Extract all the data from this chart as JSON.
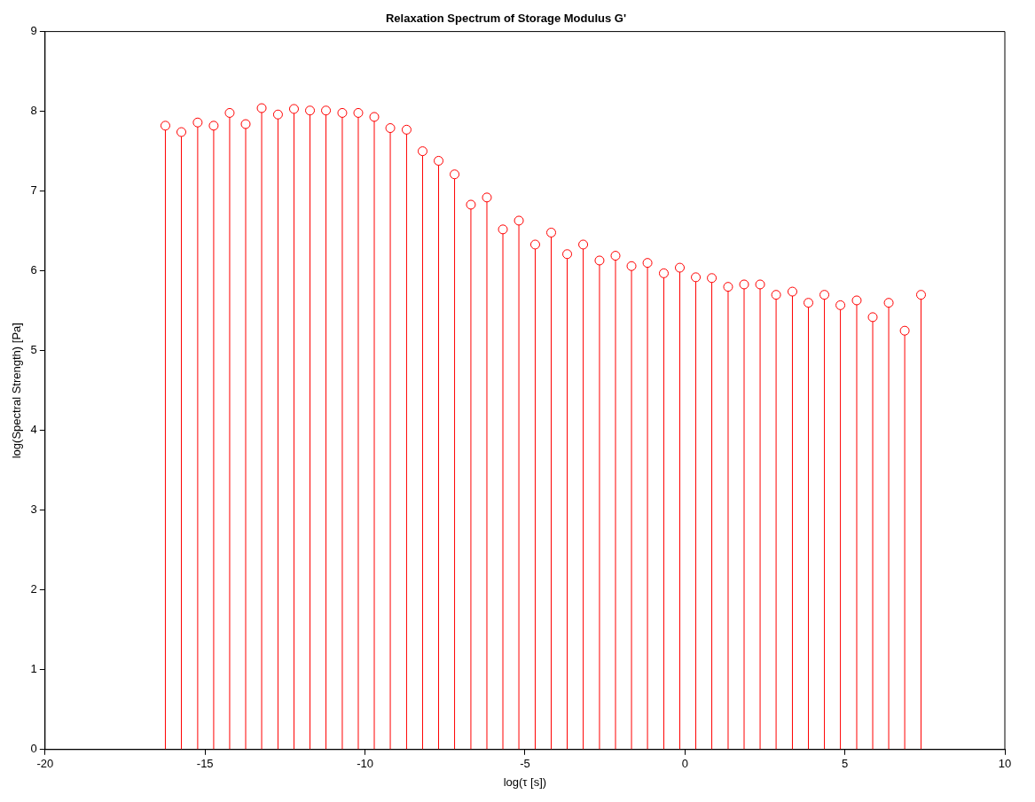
{
  "chart_data": {
    "type": "lollipop",
    "title": "Relaxation Spectrum of Storage Modulus G'",
    "xlabel": "log(τ [s])",
    "ylabel": "log(Spectral Strength) [Pa]",
    "x": [
      -16.24,
      -15.74,
      -15.23,
      -14.73,
      -14.23,
      -13.73,
      -13.23,
      -12.72,
      -12.22,
      -11.72,
      -11.22,
      -10.71,
      -10.21,
      -9.71,
      -9.21,
      -8.7,
      -8.2,
      -7.7,
      -7.2,
      -6.69,
      -6.19,
      -5.69,
      -5.19,
      -4.68,
      -4.18,
      -3.68,
      -3.18,
      -2.67,
      -2.17,
      -1.67,
      -1.17,
      -0.66,
      -0.16,
      0.34,
      0.84,
      1.35,
      1.85,
      2.35,
      2.85,
      3.36,
      3.86,
      4.36,
      4.86,
      5.37,
      5.87,
      6.37,
      6.87,
      7.38
    ],
    "values": [
      7.82,
      7.74,
      7.86,
      7.82,
      7.98,
      7.84,
      8.04,
      7.96,
      8.03,
      8.01,
      8.01,
      7.98,
      7.98,
      7.93,
      7.79,
      7.77,
      7.5,
      7.38,
      7.21,
      6.83,
      6.92,
      6.52,
      6.63,
      6.33,
      6.48,
      6.21,
      6.33,
      6.13,
      6.19,
      6.06,
      6.1,
      5.97,
      6.04,
      5.92,
      5.91,
      5.8,
      5.83,
      5.83,
      5.7,
      5.74,
      5.6,
      5.7,
      5.57,
      5.63,
      5.42,
      5.6,
      5.25,
      5.7
    ],
    "color": "#ff0000",
    "marker": "circle",
    "grid": false,
    "legend": false,
    "xlim": [
      -20,
      10
    ],
    "xticks": [
      -20,
      -15,
      -10,
      -5,
      0,
      5,
      10
    ],
    "ylim": [
      0,
      9
    ],
    "yticks": [
      0,
      1,
      2,
      3,
      4,
      5,
      6,
      7,
      8,
      9
    ]
  }
}
